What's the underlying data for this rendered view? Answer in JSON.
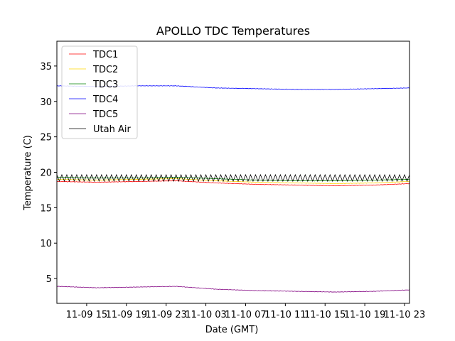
{
  "chart_data": {
    "type": "line",
    "title": "APOLLO TDC Temperatures",
    "xlabel": "Date (GMT)",
    "ylabel": "Temperature (C)",
    "x_unit": "hours since 2019-11-09 12:00 GMT",
    "xlim": [
      0,
      35.5
    ],
    "ylim": [
      1.5,
      38.5
    ],
    "xticks": [
      {
        "value": 3,
        "label": "11-09 15"
      },
      {
        "value": 7,
        "label": "11-09 19"
      },
      {
        "value": 11,
        "label": "11-09 23"
      },
      {
        "value": 15,
        "label": "11-10 03"
      },
      {
        "value": 19,
        "label": "11-10 07"
      },
      {
        "value": 23,
        "label": "11-10 11"
      },
      {
        "value": 27,
        "label": "11-10 15"
      },
      {
        "value": 31,
        "label": "11-10 19"
      },
      {
        "value": 35,
        "label": "11-10 23"
      }
    ],
    "yticks": [
      5,
      10,
      15,
      20,
      25,
      30,
      35
    ],
    "legend_position": "top-left",
    "series": [
      {
        "name": "TDC1",
        "color": "#ff0000",
        "x": [
          0,
          4,
          8,
          12,
          16,
          20,
          24,
          28,
          32,
          35.5
        ],
        "y": [
          18.7,
          18.6,
          18.7,
          18.8,
          18.5,
          18.3,
          18.2,
          18.1,
          18.2,
          18.4
        ]
      },
      {
        "name": "TDC2",
        "color": "#ffd700",
        "x": [
          0,
          4,
          8,
          12,
          16,
          20,
          24,
          28,
          32,
          35.5
        ],
        "y": [
          19.0,
          18.9,
          19.0,
          19.1,
          18.8,
          18.6,
          18.5,
          18.4,
          18.5,
          18.7
        ]
      },
      {
        "name": "TDC3",
        "color": "#008000",
        "x": [
          0,
          4,
          8,
          12,
          16,
          20,
          24,
          28,
          32,
          35.5
        ],
        "y": [
          19.3,
          19.2,
          19.2,
          19.3,
          19.1,
          18.9,
          18.8,
          18.8,
          18.9,
          19.0
        ]
      },
      {
        "name": "TDC4",
        "color": "#0000ff",
        "x": [
          0,
          4,
          8,
          12,
          16,
          20,
          24,
          28,
          32,
          35.5
        ],
        "y": [
          32.2,
          32.1,
          32.2,
          32.2,
          31.9,
          31.8,
          31.7,
          31.7,
          31.8,
          31.9
        ]
      },
      {
        "name": "TDC5",
        "color": "#800080",
        "x": [
          0,
          4,
          8,
          12,
          16,
          20,
          24,
          28,
          32,
          35.5
        ],
        "y": [
          3.9,
          3.7,
          3.8,
          3.9,
          3.5,
          3.3,
          3.2,
          3.1,
          3.2,
          3.4
        ]
      },
      {
        "name": "Utah Air",
        "color": "#000000",
        "baseline": 19.2,
        "amplitude": 0.45,
        "period_hours": 0.5,
        "x_range": [
          0,
          35.5
        ]
      }
    ]
  }
}
